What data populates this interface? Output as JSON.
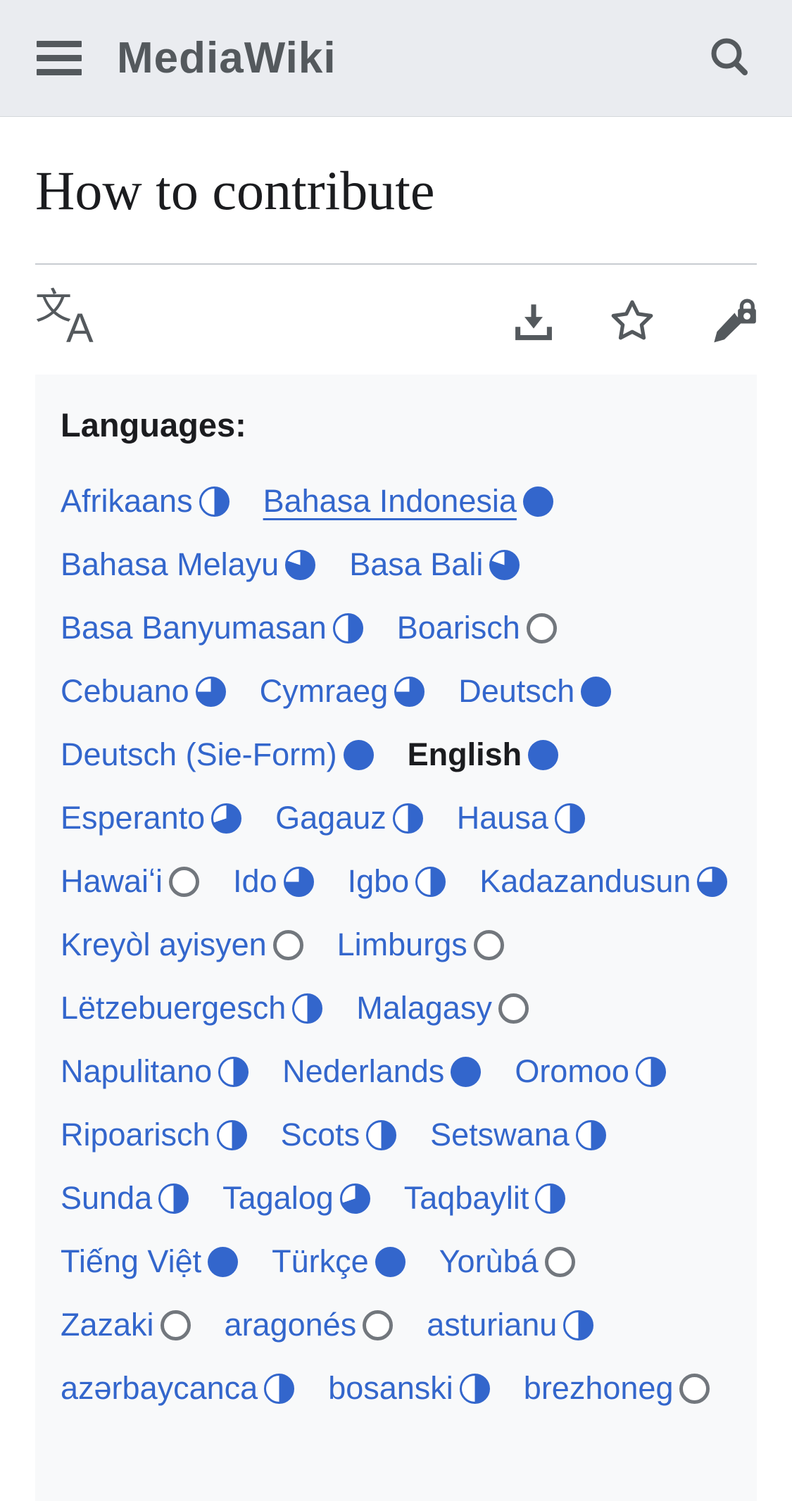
{
  "colors": {
    "accent": "#3366cc",
    "muted_circle": "#72777d",
    "icon_gray": "#54595d",
    "header_bg": "#eaecf0",
    "box_bg": "#f8f9fa"
  },
  "header": {
    "logo": "MediaWiki",
    "menu_icon": "hamburger-icon",
    "search_icon": "search-icon"
  },
  "page": {
    "title": "How to contribute"
  },
  "toolbar": {
    "language_glyph_primary": "文",
    "language_glyph_secondary": "A",
    "icons": [
      "language-icon",
      "download-icon",
      "watchstar-icon",
      "edit-locked-icon"
    ]
  },
  "languages": {
    "heading": "Languages:",
    "rows": [
      [
        {
          "label": "Afrikaans",
          "progress": 50
        },
        {
          "label": "Bahasa Indonesia",
          "progress": 100,
          "underlined": true
        }
      ],
      [
        {
          "label": "Bahasa Melayu",
          "progress": 80
        },
        {
          "label": "Basa Bali",
          "progress": 80
        }
      ],
      [
        {
          "label": "Basa Banyumasan",
          "progress": 50
        },
        {
          "label": "Boarisch",
          "progress": 0
        }
      ],
      [
        {
          "label": "Cebuano",
          "progress": 75
        },
        {
          "label": "Cymraeg",
          "progress": 75
        },
        {
          "label": "Deutsch",
          "progress": 100
        }
      ],
      [
        {
          "label": "Deutsch (Sie-Form)",
          "progress": 100
        },
        {
          "label": "English",
          "progress": 100,
          "current": true
        }
      ],
      [
        {
          "label": "Esperanto",
          "progress": 70
        },
        {
          "label": "Gagauz",
          "progress": 50
        },
        {
          "label": "Hausa",
          "progress": 50
        }
      ],
      [
        {
          "label": "Hawaiʻi",
          "progress": 0
        },
        {
          "label": "Ido",
          "progress": 75
        },
        {
          "label": "Igbo",
          "progress": 50
        },
        {
          "label": "Kadazandusun",
          "progress": 75
        }
      ],
      [
        {
          "label": "Kreyòl ayisyen",
          "progress": 0
        },
        {
          "label": "Limburgs",
          "progress": 0
        }
      ],
      [
        {
          "label": "Lëtzebuergesch",
          "progress": 50
        },
        {
          "label": "Malagasy",
          "progress": 0
        }
      ],
      [
        {
          "label": "Napulitano",
          "progress": 50
        },
        {
          "label": "Nederlands",
          "progress": 100
        },
        {
          "label": "Oromoo",
          "progress": 50
        }
      ],
      [
        {
          "label": "Ripoarisch",
          "progress": 50
        },
        {
          "label": "Scots",
          "progress": 50
        },
        {
          "label": "Setswana",
          "progress": 50
        }
      ],
      [
        {
          "label": "Sunda",
          "progress": 50
        },
        {
          "label": "Tagalog",
          "progress": 70
        },
        {
          "label": "Taqbaylit",
          "progress": 50
        }
      ],
      [
        {
          "label": "Tiếng Việt",
          "progress": 100
        },
        {
          "label": "Türkçe",
          "progress": 100
        },
        {
          "label": "Yorùbá",
          "progress": 0
        }
      ],
      [
        {
          "label": "Zazaki",
          "progress": 0
        },
        {
          "label": "aragonés",
          "progress": 0
        },
        {
          "label": "asturianu",
          "progress": 50
        }
      ],
      [
        {
          "label": "azərbaycanca",
          "progress": 50
        },
        {
          "label": "bosanski",
          "progress": 50
        },
        {
          "label": "brezhoneg",
          "progress": 0
        }
      ]
    ]
  }
}
